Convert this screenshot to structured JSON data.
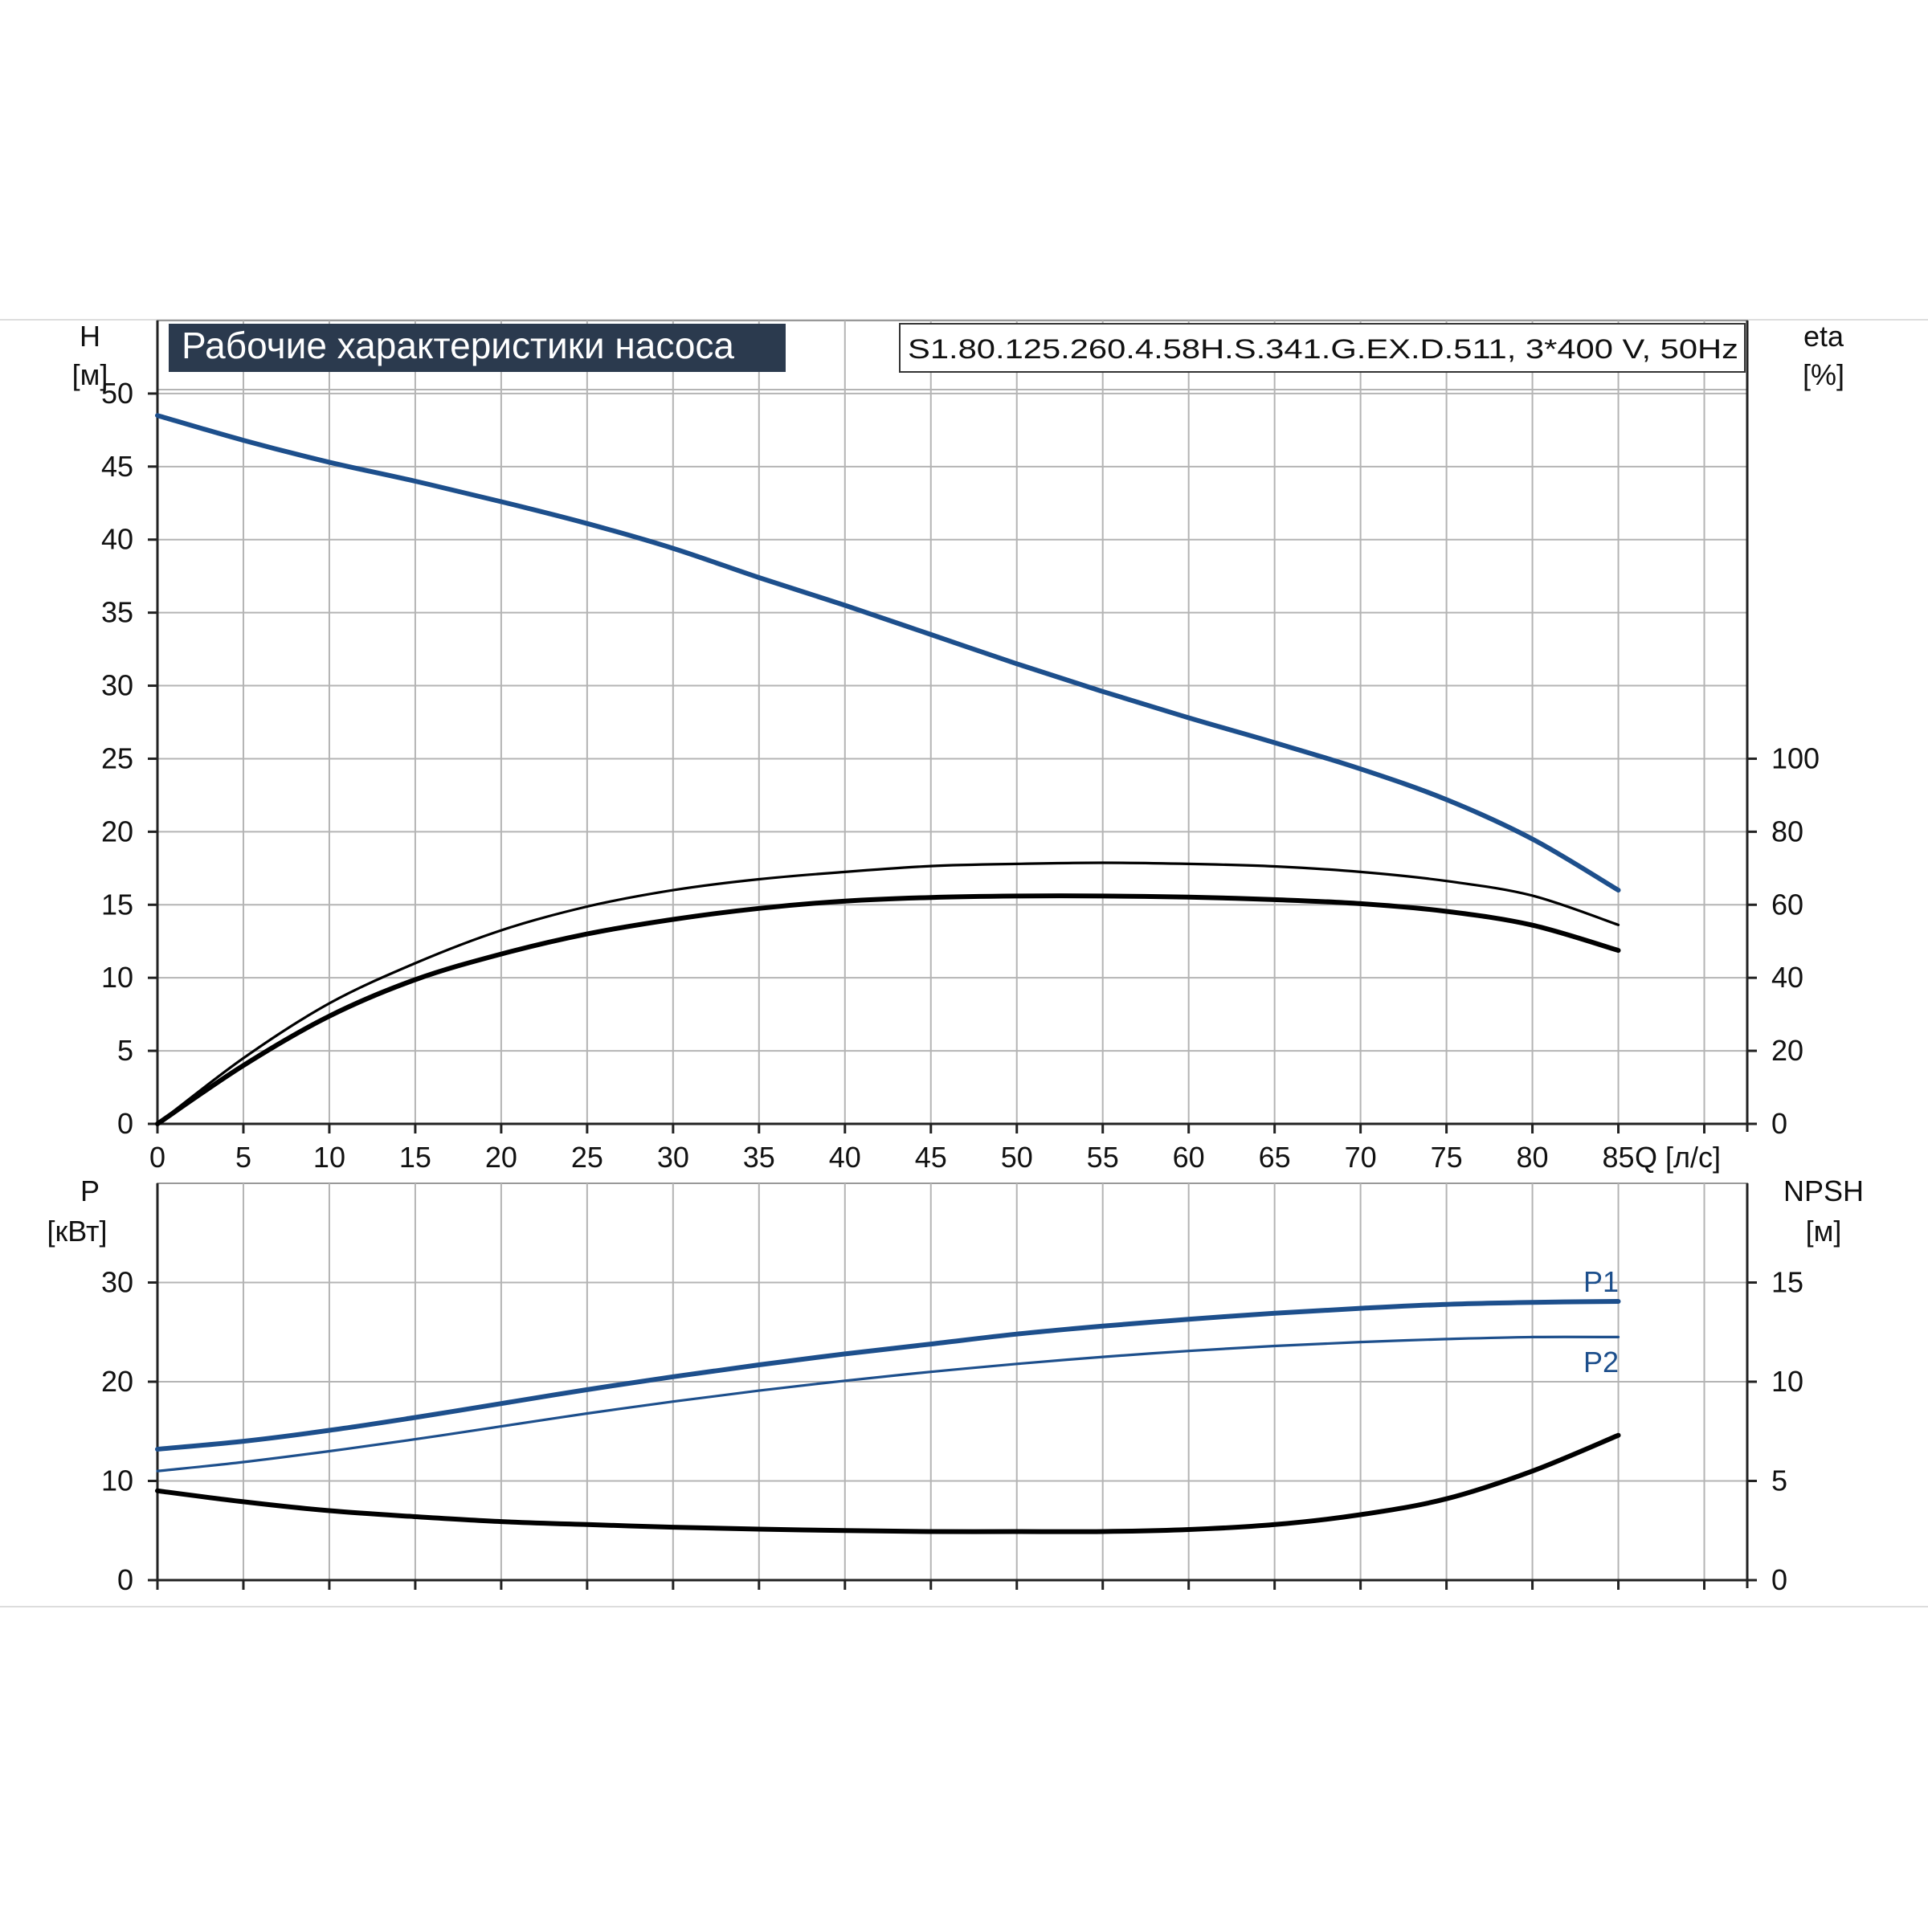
{
  "header": {
    "title": "Рабочие характеристики насоса",
    "model": "S1.80.125.260.4.58H.S.341.G.EX.D.511, 3*400 V, 50Hz"
  },
  "colors": {
    "curve_blue": "#1d4f8c",
    "curve_black": "#000000",
    "grid": "#b4b4b4",
    "title_bg": "#2b3a4e",
    "title_fg": "#ffffff"
  },
  "chart_data": [
    {
      "type": "line",
      "x_label": "Q [л/с]",
      "x_ticks": [
        "0",
        "5",
        "10",
        "15",
        "20",
        "25",
        "30",
        "35",
        "40",
        "45",
        "50",
        "55",
        "60",
        "65",
        "70",
        "75",
        "80",
        "85"
      ],
      "xlim": [
        0,
        92.5
      ],
      "y_left_label": [
        "H",
        "[м]"
      ],
      "y_left_ticks": [
        "0",
        "5",
        "10",
        "15",
        "20",
        "25",
        "30",
        "35",
        "40",
        "45",
        "50"
      ],
      "ylim_left": [
        0,
        55
      ],
      "y_right_label": [
        "eta",
        "[%]"
      ],
      "y_right_ticks": [
        "0",
        "20",
        "40",
        "60",
        "80",
        "100"
      ],
      "ylim_right": [
        0,
        220
      ],
      "grid": true,
      "series": [
        {
          "axis": "left",
          "color": "blue",
          "width": "thick",
          "x": [
            0,
            5,
            10,
            15,
            20,
            25,
            30,
            35,
            40,
            45,
            50,
            55,
            60,
            65,
            70,
            75,
            80,
            85
          ],
          "y": [
            48.5,
            46.8,
            45.3,
            44.0,
            42.6,
            41.1,
            39.4,
            37.4,
            35.5,
            33.5,
            31.5,
            29.6,
            27.8,
            26.1,
            24.3,
            22.2,
            19.5,
            16.0
          ]
        },
        {
          "axis": "right",
          "color": "black",
          "width": "thin",
          "x": [
            0,
            5,
            10,
            15,
            20,
            25,
            30,
            35,
            40,
            45,
            50,
            55,
            60,
            65,
            70,
            75,
            80,
            85
          ],
          "y": [
            0,
            18,
            33,
            44,
            53,
            59.5,
            64,
            67,
            69,
            70.6,
            71.2,
            71.5,
            71.2,
            70.5,
            69,
            66.5,
            62.5,
            54.5
          ]
        },
        {
          "axis": "right",
          "color": "black",
          "width": "thick",
          "x": [
            0,
            5,
            10,
            15,
            20,
            25,
            30,
            35,
            40,
            45,
            50,
            55,
            60,
            65,
            70,
            75,
            80,
            85
          ],
          "y": [
            0,
            16,
            29.5,
            39.5,
            46.5,
            52,
            56,
            59,
            61,
            62,
            62.4,
            62.4,
            62.1,
            61.4,
            60.3,
            58.2,
            54.4,
            47.5
          ]
        }
      ]
    },
    {
      "type": "line",
      "xlim": [
        0,
        92.5
      ],
      "y_left_label": [
        "P",
        "[кВт]"
      ],
      "y_left_ticks": [
        "0",
        "10",
        "20",
        "30"
      ],
      "ylim_left": [
        0,
        40
      ],
      "y_right_label": [
        "NPSH",
        "[м]"
      ],
      "y_right_ticks": [
        "0",
        "5",
        "10",
        "15"
      ],
      "ylim_right": [
        0,
        20
      ],
      "grid": true,
      "series": [
        {
          "name": "P1",
          "axis": "left",
          "color": "blue",
          "width": "thick",
          "x": [
            0,
            5,
            10,
            15,
            20,
            25,
            30,
            35,
            40,
            45,
            50,
            55,
            60,
            65,
            70,
            75,
            80,
            85
          ],
          "y": [
            13.2,
            14.0,
            15.1,
            16.4,
            17.8,
            19.2,
            20.5,
            21.7,
            22.8,
            23.8,
            24.8,
            25.6,
            26.3,
            26.9,
            27.4,
            27.8,
            28.0,
            28.1
          ]
        },
        {
          "name": "P2",
          "axis": "left",
          "color": "blue",
          "width": "thin",
          "x": [
            0,
            5,
            10,
            15,
            20,
            25,
            30,
            35,
            40,
            45,
            50,
            55,
            60,
            65,
            70,
            75,
            80,
            85
          ],
          "y": [
            11.0,
            11.9,
            13.0,
            14.2,
            15.5,
            16.8,
            18.0,
            19.1,
            20.1,
            21.0,
            21.8,
            22.5,
            23.1,
            23.6,
            24.0,
            24.3,
            24.5,
            24.5
          ]
        },
        {
          "axis": "right",
          "color": "black",
          "width": "thick",
          "x": [
            0,
            5,
            10,
            15,
            20,
            25,
            30,
            35,
            40,
            45,
            50,
            55,
            60,
            65,
            70,
            75,
            80,
            85
          ],
          "y": [
            4.5,
            3.95,
            3.5,
            3.2,
            2.95,
            2.8,
            2.67,
            2.57,
            2.5,
            2.45,
            2.45,
            2.45,
            2.55,
            2.8,
            3.3,
            4.1,
            5.5,
            7.3
          ]
        }
      ],
      "labels": {
        "p1": "P1",
        "p2": "P2"
      }
    }
  ]
}
